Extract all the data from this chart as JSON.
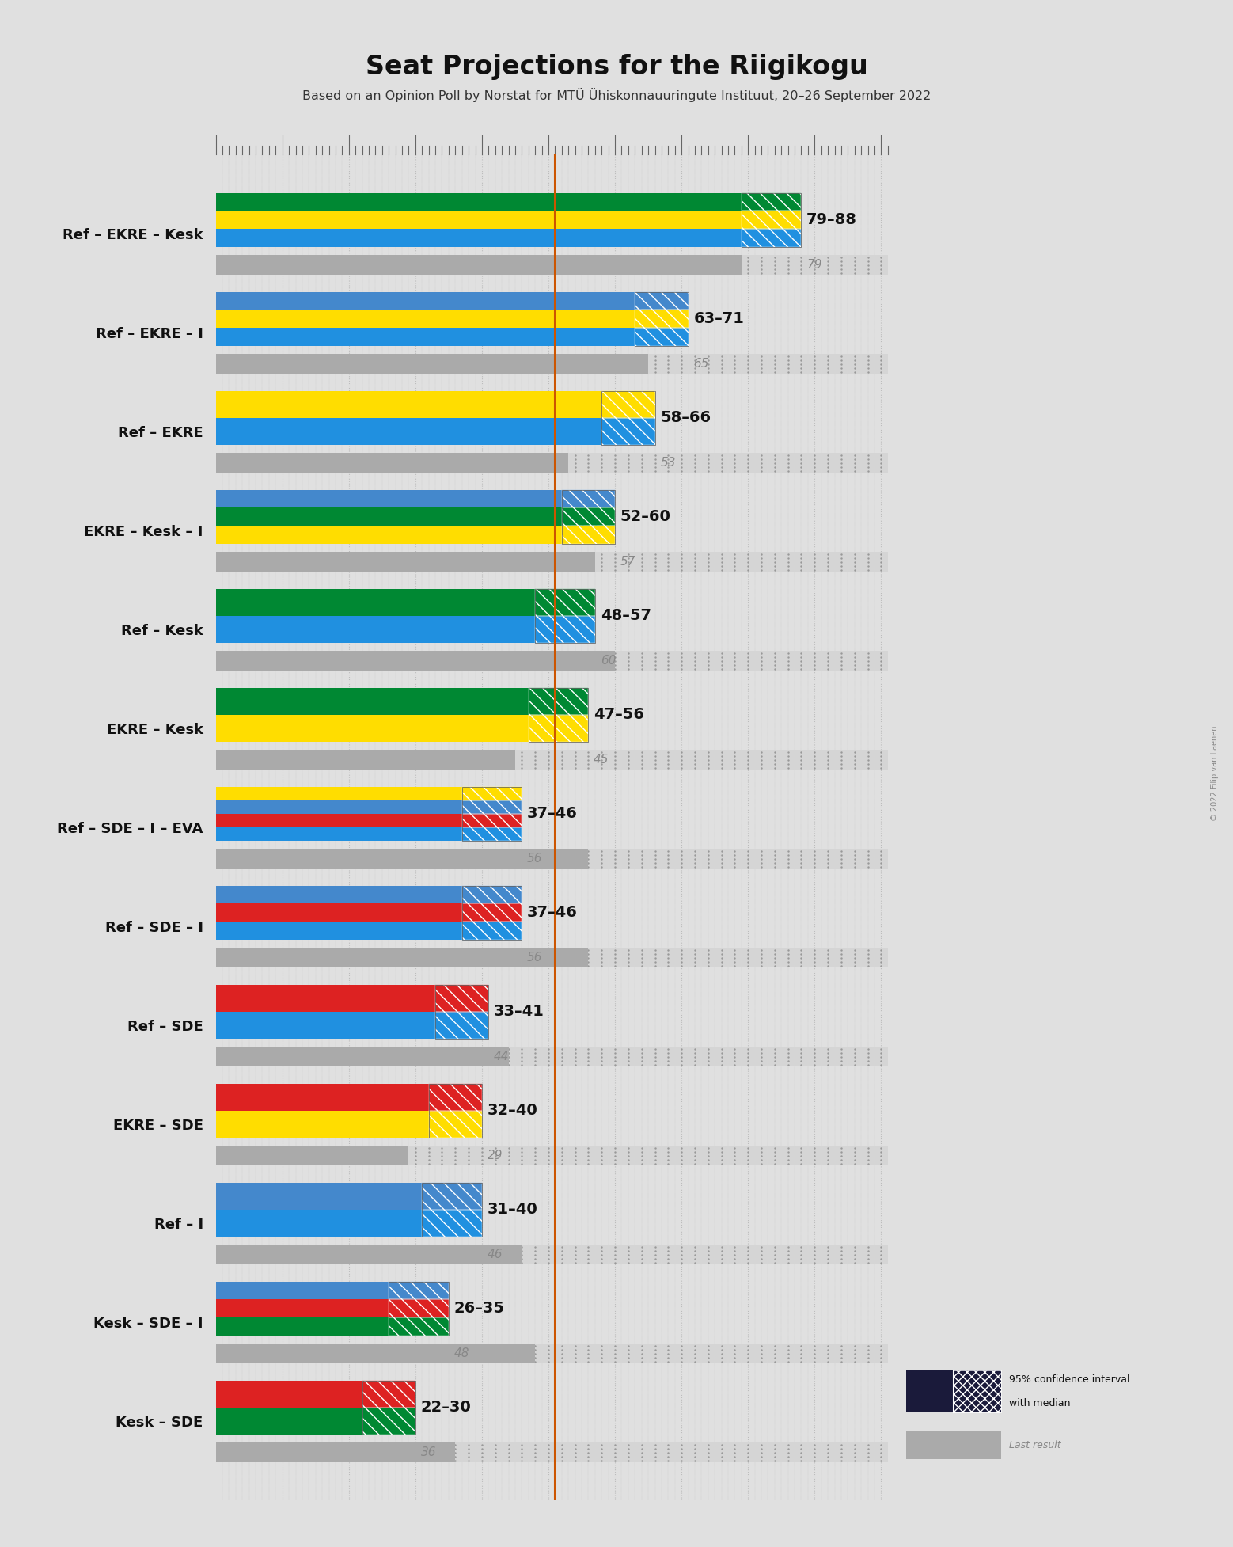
{
  "title": "Seat Projections for the Riigikogu",
  "subtitle": "Based on an Opinion Poll by Norstat for MTÜ Ühiskonnauuringute Instituut, 20–26 September 2022",
  "copyright": "© 2022 Filip van Laenen",
  "coalitions": [
    {
      "name": "Ref – EKRE – Kesk",
      "underline": false,
      "ci_low": 79,
      "ci_high": 88,
      "last": 79,
      "parties": [
        "Ref",
        "EKRE",
        "Kesk"
      ]
    },
    {
      "name": "Ref – EKRE – I",
      "underline": false,
      "ci_low": 63,
      "ci_high": 71,
      "last": 65,
      "parties": [
        "Ref",
        "EKRE",
        "I"
      ]
    },
    {
      "name": "Ref – EKRE",
      "underline": false,
      "ci_low": 58,
      "ci_high": 66,
      "last": 53,
      "parties": [
        "Ref",
        "EKRE"
      ]
    },
    {
      "name": "EKRE – Kesk – I",
      "underline": true,
      "ci_low": 52,
      "ci_high": 60,
      "last": 57,
      "parties": [
        "EKRE",
        "Kesk",
        "I"
      ]
    },
    {
      "name": "Ref – Kesk",
      "underline": false,
      "ci_low": 48,
      "ci_high": 57,
      "last": 60,
      "parties": [
        "Ref",
        "Kesk"
      ]
    },
    {
      "name": "EKRE – Kesk",
      "underline": false,
      "ci_low": 47,
      "ci_high": 56,
      "last": 45,
      "parties": [
        "EKRE",
        "Kesk"
      ]
    },
    {
      "name": "Ref – SDE – I – EVA",
      "underline": false,
      "ci_low": 37,
      "ci_high": 46,
      "last": 56,
      "parties": [
        "Ref",
        "SDE",
        "I",
        "EVA"
      ]
    },
    {
      "name": "Ref – SDE – I",
      "underline": false,
      "ci_low": 37,
      "ci_high": 46,
      "last": 56,
      "parties": [
        "Ref",
        "SDE",
        "I"
      ]
    },
    {
      "name": "Ref – SDE",
      "underline": false,
      "ci_low": 33,
      "ci_high": 41,
      "last": 44,
      "parties": [
        "Ref",
        "SDE"
      ]
    },
    {
      "name": "EKRE – SDE",
      "underline": false,
      "ci_low": 32,
      "ci_high": 40,
      "last": 29,
      "parties": [
        "EKRE",
        "SDE"
      ]
    },
    {
      "name": "Ref – I",
      "underline": false,
      "ci_low": 31,
      "ci_high": 40,
      "last": 46,
      "parties": [
        "Ref",
        "I"
      ]
    },
    {
      "name": "Kesk – SDE – I",
      "underline": false,
      "ci_low": 26,
      "ci_high": 35,
      "last": 48,
      "parties": [
        "Kesk",
        "SDE",
        "I"
      ]
    },
    {
      "name": "Kesk – SDE",
      "underline": false,
      "ci_low": 22,
      "ci_high": 30,
      "last": 36,
      "parties": [
        "Kesk",
        "SDE"
      ]
    }
  ],
  "party_colors": {
    "Ref": "#2090E0",
    "EKRE": "#FFDD00",
    "Kesk": "#008833",
    "I": "#5599CC",
    "SDE": "#DD2222",
    "EVA": "#FFDD00"
  },
  "majority_line": 51,
  "xmax": 101,
  "bg_color": "#E0E0E0",
  "majority_line_color": "#CC5500",
  "label_range_color": "#111111",
  "label_last_color": "#888888"
}
